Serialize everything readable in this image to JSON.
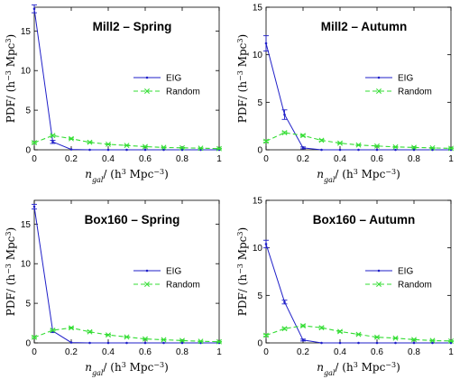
{
  "colors": {
    "eig": "#1f1fc8",
    "random": "#33dd33",
    "axes": "#000000",
    "background": "#ffffff"
  },
  "chart_data": [
    {
      "type": "line",
      "title": "Mill2 – Spring",
      "xlabel": "n_gal/ (h^3 Mpc^-3)",
      "ylabel": "PDF/ (h^-3 Mpc^3)",
      "xlim": [
        0,
        1
      ],
      "ylim": [
        0,
        18
      ],
      "xticks": [
        "0",
        "0.2",
        "0.4",
        "0.6",
        "0.8",
        "1"
      ],
      "yticks": [
        "0",
        "5",
        "10",
        "15"
      ],
      "legend_position": "right",
      "series": [
        {
          "name": "EIG",
          "style": "solid-point",
          "x": [
            0,
            0.1,
            0.2,
            0.3,
            0.4,
            0.5,
            0.6,
            0.7,
            0.8,
            0.9,
            1.0
          ],
          "y": [
            17.8,
            1.0,
            0.05,
            0.0,
            0.0,
            0.0,
            0.0,
            0.0,
            0.0,
            0.0,
            0.0
          ],
          "err": [
            0.5,
            0.2,
            0,
            0,
            0,
            0,
            0,
            0,
            0,
            0,
            0
          ]
        },
        {
          "name": "Random",
          "style": "dashed-x",
          "x": [
            0,
            0.1,
            0.2,
            0.3,
            0.4,
            0.5,
            0.6,
            0.7,
            0.8,
            0.9,
            1.0
          ],
          "y": [
            0.9,
            1.8,
            1.4,
            0.95,
            0.7,
            0.55,
            0.4,
            0.3,
            0.25,
            0.2,
            0.15
          ],
          "err": [
            0.1,
            0.1,
            0.1,
            0.08,
            0.05,
            0.05,
            0.05,
            0.05,
            0.05,
            0.05,
            0.05
          ]
        }
      ]
    },
    {
      "type": "line",
      "title": "Mill2 – Autumn",
      "xlabel": "n_gal/ (h^3 Mpc^-3)",
      "ylabel": "PDF/ (h^-3 Mpc^3)",
      "xlim": [
        0,
        1
      ],
      "ylim": [
        0,
        15
      ],
      "xticks": [
        "0",
        "0.2",
        "0.4",
        "0.6",
        "0.8",
        "1"
      ],
      "yticks": [
        "0",
        "5",
        "10",
        "15"
      ],
      "legend_position": "right",
      "series": [
        {
          "name": "EIG",
          "style": "solid-point",
          "x": [
            0,
            0.1,
            0.2,
            0.3,
            0.4,
            0.5,
            0.6,
            0.7,
            0.8,
            0.9,
            1.0
          ],
          "y": [
            11.2,
            3.7,
            0.2,
            0.0,
            0.0,
            0.0,
            0.0,
            0.0,
            0.0,
            0.0,
            0.0
          ],
          "err": [
            0.8,
            0.5,
            0.1,
            0,
            0,
            0,
            0,
            0,
            0,
            0,
            0
          ]
        },
        {
          "name": "Random",
          "style": "dashed-x",
          "x": [
            0,
            0.1,
            0.2,
            0.3,
            0.4,
            0.5,
            0.6,
            0.7,
            0.8,
            0.9,
            1.0
          ],
          "y": [
            0.9,
            1.8,
            1.5,
            1.0,
            0.7,
            0.5,
            0.4,
            0.3,
            0.25,
            0.2,
            0.15
          ],
          "err": [
            0.1,
            0.1,
            0.1,
            0.08,
            0.05,
            0.05,
            0.05,
            0.05,
            0.05,
            0.05,
            0.05
          ]
        }
      ]
    },
    {
      "type": "line",
      "title": "Box160 – Spring",
      "xlabel": "n_gal/ (h^3 Mpc^-3)",
      "ylabel": "PDF/ (h^-3 Mpc^3)",
      "xlim": [
        0,
        1
      ],
      "ylim": [
        0,
        18
      ],
      "xticks": [
        "0",
        "0.2",
        "0.4",
        "0.6",
        "0.8",
        "1"
      ],
      "yticks": [
        "0",
        "5",
        "10",
        "15"
      ],
      "legend_position": "right",
      "series": [
        {
          "name": "EIG",
          "style": "solid-point",
          "x": [
            0,
            0.1,
            0.2,
            0.3,
            0.4,
            0.5,
            0.6,
            0.7,
            0.8,
            0.9,
            1.0
          ],
          "y": [
            17.2,
            1.5,
            0.05,
            0.0,
            0.0,
            0.0,
            0.0,
            0.0,
            0.0,
            0.0,
            0.0
          ],
          "err": [
            0.3,
            0.2,
            0,
            0,
            0,
            0,
            0,
            0,
            0,
            0,
            0
          ]
        },
        {
          "name": "Random",
          "style": "dashed-x",
          "x": [
            0,
            0.1,
            0.2,
            0.3,
            0.4,
            0.5,
            0.6,
            0.7,
            0.8,
            0.9,
            1.0
          ],
          "y": [
            0.7,
            1.6,
            1.9,
            1.4,
            1.0,
            0.75,
            0.5,
            0.4,
            0.3,
            0.2,
            0.15
          ],
          "err": [
            0.1,
            0.1,
            0.1,
            0.1,
            0.08,
            0.05,
            0.05,
            0.05,
            0.05,
            0.05,
            0.05
          ]
        }
      ]
    },
    {
      "type": "line",
      "title": "Box160 – Autumn",
      "xlabel": "n_gal/ (h^3 Mpc^-3)",
      "ylabel": "PDF/ (h^-3 Mpc^3)",
      "xlim": [
        0,
        1
      ],
      "ylim": [
        0,
        15
      ],
      "xticks": [
        "0",
        "0.2",
        "0.4",
        "0.6",
        "0.8",
        "1"
      ],
      "yticks": [
        "0",
        "5",
        "10",
        "15"
      ],
      "legend_position": "right",
      "series": [
        {
          "name": "EIG",
          "style": "solid-point",
          "x": [
            0,
            0.1,
            0.2,
            0.3,
            0.4,
            0.5,
            0.6,
            0.7,
            0.8,
            0.9,
            1.0
          ],
          "y": [
            10.4,
            4.3,
            0.3,
            0.0,
            0.0,
            0.0,
            0.0,
            0.0,
            0.0,
            0.0,
            0.0
          ],
          "err": [
            0.4,
            0.2,
            0.1,
            0,
            0,
            0,
            0,
            0,
            0,
            0,
            0
          ]
        },
        {
          "name": "Random",
          "style": "dashed-x",
          "x": [
            0,
            0.1,
            0.2,
            0.3,
            0.4,
            0.5,
            0.6,
            0.7,
            0.8,
            0.9,
            1.0
          ],
          "y": [
            0.8,
            1.5,
            1.8,
            1.6,
            1.2,
            0.9,
            0.6,
            0.5,
            0.35,
            0.25,
            0.2
          ],
          "err": [
            0.1,
            0.1,
            0.1,
            0.1,
            0.08,
            0.05,
            0.05,
            0.05,
            0.05,
            0.05,
            0.05
          ]
        }
      ]
    }
  ]
}
